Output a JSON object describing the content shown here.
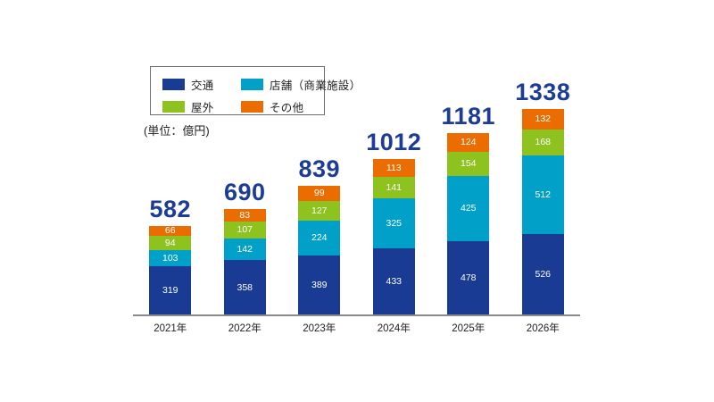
{
  "unit_label": "(単位：億円)",
  "legend": {
    "items": [
      {
        "id": "traffic",
        "label": "交通",
        "color": "#1a3b94"
      },
      {
        "id": "store",
        "label": "店舗（商業施設）",
        "color": "#00a0c9"
      },
      {
        "id": "outdoor",
        "label": "屋外",
        "color": "#8dc21f"
      },
      {
        "id": "other",
        "label": "その他",
        "color": "#eb6c00"
      }
    ]
  },
  "chart_data": {
    "type": "bar",
    "stacked": true,
    "title": "",
    "xlabel": "",
    "ylabel": "",
    "unit": "億円",
    "categories": [
      "2021年",
      "2022年",
      "2023年",
      "2024年",
      "2025年",
      "2026年"
    ],
    "series": [
      {
        "id": "traffic",
        "name": "交通",
        "color": "#1a3b94",
        "values": [
          319,
          358,
          389,
          433,
          478,
          526
        ]
      },
      {
        "id": "store",
        "name": "店舗（商業施設）",
        "color": "#00a0c9",
        "values": [
          103,
          142,
          224,
          325,
          425,
          512
        ]
      },
      {
        "id": "outdoor",
        "name": "屋外",
        "color": "#8dc21f",
        "values": [
          94,
          107,
          127,
          141,
          154,
          168
        ]
      },
      {
        "id": "other",
        "name": "その他",
        "color": "#eb6c00",
        "values": [
          66,
          83,
          99,
          113,
          124,
          132
        ]
      }
    ],
    "totals": [
      582,
      690,
      839,
      1012,
      1181,
      1338
    ],
    "totals_color": "#1c3c96",
    "legend_position": "top-left",
    "grid": false
  }
}
